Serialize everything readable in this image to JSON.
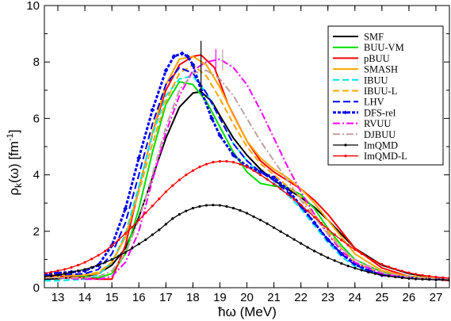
{
  "chart_data": {
    "type": "line",
    "xlabel": "ħω (MeV)",
    "ylabel_main": "ρ",
    "ylabel_sub": "k",
    "ylabel_rest": "(ω) [fm",
    "ylabel_sup": "-1",
    "ylabel_end": "]",
    "xlim": [
      12.5,
      27.5
    ],
    "ylim": [
      0,
      10
    ],
    "xticks": [
      13,
      14,
      15,
      16,
      17,
      18,
      19,
      20,
      21,
      22,
      23,
      24,
      25,
      26,
      27
    ],
    "yticks": [
      0,
      2,
      4,
      6,
      8,
      10
    ],
    "grid": false,
    "legend_position": "top-right",
    "markers": [
      {
        "x": 18.3,
        "y_low": 6.9,
        "y_high": 8.75,
        "color": "#000000"
      },
      {
        "x": 18.85,
        "y_low": 7.7,
        "y_high": 8.45,
        "color": "#ff00ff"
      },
      {
        "x": 19.1,
        "y_low": 7.7,
        "y_high": 8.45,
        "color": "#c0a0a0"
      }
    ],
    "series": [
      {
        "name": "SMF",
        "color": "#000000",
        "dash": "",
        "width": 2,
        "marker": "",
        "x": [
          12.5,
          13,
          14,
          14.5,
          15,
          15.5,
          16,
          16.5,
          17,
          17.5,
          18,
          18.3,
          18.7,
          19,
          19.5,
          20,
          20.5,
          21,
          21.5,
          22,
          22.5,
          23,
          23.5,
          24,
          25,
          26,
          27,
          27.5
        ],
        "y": [
          0.3,
          0.32,
          0.4,
          0.5,
          0.8,
          1.4,
          2.5,
          3.9,
          5.3,
          6.4,
          6.9,
          6.95,
          6.6,
          6.1,
          5.3,
          4.7,
          4.2,
          3.8,
          3.5,
          3.2,
          2.85,
          2.4,
          1.9,
          1.4,
          0.8,
          0.5,
          0.35,
          0.3
        ]
      },
      {
        "name": "BUU-VM",
        "color": "#00dd00",
        "dash": "",
        "width": 2,
        "marker": "",
        "x": [
          12.5,
          13,
          14,
          14.5,
          15,
          15.5,
          16,
          16.5,
          17,
          17.5,
          18,
          18.5,
          19,
          19.5,
          20,
          20.5,
          21,
          21.5,
          22,
          22.5,
          23,
          23.5,
          24,
          25,
          26,
          27,
          27.5
        ],
        "y": [
          0.45,
          0.45,
          0.4,
          0.35,
          0.5,
          1.2,
          2.8,
          4.8,
          6.5,
          7.3,
          7.2,
          6.6,
          5.7,
          4.8,
          4.1,
          3.7,
          3.6,
          3.55,
          3.3,
          2.8,
          2.1,
          1.5,
          1.0,
          0.55,
          0.4,
          0.35,
          0.3
        ]
      },
      {
        "name": "pBUU",
        "color": "#ff0000",
        "dash": "",
        "width": 2,
        "marker": "",
        "x": [
          12.5,
          13,
          14,
          14.5,
          15,
          15.5,
          16,
          16.5,
          17,
          17.5,
          18,
          18.3,
          18.8,
          19.3,
          20,
          20.5,
          21,
          21.5,
          22,
          22.5,
          23,
          23.5,
          24,
          25,
          26,
          27,
          27.5
        ],
        "y": [
          0.4,
          0.4,
          0.35,
          0.3,
          0.3,
          1.5,
          3.5,
          5.5,
          7.0,
          7.9,
          8.2,
          8.25,
          7.8,
          6.5,
          5.2,
          4.5,
          4.1,
          3.8,
          3.5,
          3.1,
          2.6,
          2.0,
          1.4,
          0.7,
          0.4,
          0.3,
          0.25
        ]
      },
      {
        "name": "SMASH",
        "color": "#ffa500",
        "dash": "",
        "width": 2,
        "marker": "",
        "x": [
          12.5,
          13,
          14,
          14.5,
          15,
          15.5,
          16,
          16.5,
          17,
          17.5,
          18,
          18.5,
          19,
          19.5,
          20,
          20.5,
          21,
          21.5,
          22,
          22.5,
          23,
          23.5,
          24,
          25,
          26,
          27,
          27.5
        ],
        "y": [
          0.45,
          0.45,
          0.45,
          0.5,
          0.9,
          1.8,
          3.5,
          5.5,
          7.2,
          8.1,
          8.2,
          7.9,
          7.1,
          6.1,
          5.2,
          4.6,
          4.2,
          3.9,
          3.5,
          3.0,
          2.4,
          1.8,
          1.2,
          0.6,
          0.4,
          0.35,
          0.3
        ]
      },
      {
        "name": "IBUU",
        "color": "#00e5e5",
        "dash": "8,4",
        "width": 2,
        "marker": "",
        "x": [
          12.5,
          13,
          14,
          14.5,
          15,
          15.5,
          16,
          16.5,
          17,
          17.5,
          18,
          18.5,
          19,
          19.5,
          20,
          20.5,
          21,
          21.5,
          22,
          22.5,
          23,
          23.5,
          24,
          25,
          26,
          27,
          27.5
        ],
        "y": [
          0.25,
          0.25,
          0.3,
          0.45,
          0.9,
          1.9,
          3.6,
          5.4,
          6.8,
          7.4,
          7.5,
          6.9,
          6.0,
          5.1,
          4.5,
          4.0,
          3.7,
          3.3,
          2.8,
          2.2,
          1.6,
          1.1,
          0.75,
          0.45,
          0.35,
          0.3,
          0.3
        ]
      },
      {
        "name": "IBUU-L",
        "color": "#ffa500",
        "dash": "8,4",
        "width": 2,
        "marker": "",
        "x": [
          12.5,
          13,
          14,
          14.5,
          15,
          15.5,
          16,
          16.5,
          17,
          17.5,
          18,
          18.5,
          19,
          19.5,
          20,
          20.5,
          21,
          21.5,
          22,
          22.5,
          23,
          23.5,
          24,
          25,
          26,
          27,
          27.5
        ],
        "y": [
          0.4,
          0.4,
          0.45,
          0.55,
          0.9,
          1.8,
          3.4,
          5.1,
          6.6,
          7.6,
          7.9,
          7.5,
          6.7,
          5.8,
          5.0,
          4.4,
          4.0,
          3.6,
          3.2,
          2.6,
          2.0,
          1.4,
          0.9,
          0.5,
          0.38,
          0.33,
          0.3
        ]
      },
      {
        "name": "LHV",
        "color": "#0000ee",
        "dash": "9,4",
        "width": 2,
        "marker": "",
        "x": [
          12.5,
          13,
          14,
          14.5,
          15,
          15.5,
          16,
          16.5,
          17,
          17.5,
          18,
          18.5,
          19,
          19.5,
          20,
          20.5,
          21,
          21.5,
          22,
          22.5,
          23,
          23.5,
          24,
          25,
          26,
          27,
          27.5
        ],
        "y": [
          0.45,
          0.45,
          0.5,
          0.65,
          1.2,
          2.3,
          4.0,
          5.8,
          7.2,
          7.8,
          7.6,
          6.9,
          6.0,
          5.1,
          4.5,
          4.1,
          3.8,
          3.4,
          2.9,
          2.3,
          1.7,
          1.2,
          0.8,
          0.45,
          0.35,
          0.3,
          0.3
        ]
      },
      {
        "name": "DFS-rel",
        "color": "#0000ee",
        "dash": "4,2",
        "width": 3,
        "marker": "diamond",
        "x": [
          12.5,
          13,
          13.5,
          14,
          14.5,
          15,
          15.5,
          16,
          16.5,
          17,
          17.3,
          17.6,
          17.8,
          18,
          18.3,
          18.7,
          19,
          19.5,
          20,
          20.5,
          21,
          21.5,
          22,
          22.5,
          23,
          23.5,
          24,
          24.5,
          25,
          26,
          27,
          27.5
        ],
        "y": [
          0.5,
          0.52,
          0.55,
          0.6,
          0.8,
          1.5,
          2.8,
          4.6,
          6.3,
          7.7,
          8.2,
          8.3,
          8.2,
          7.9,
          7.0,
          6.0,
          5.4,
          4.7,
          4.3,
          4.1,
          3.9,
          3.5,
          2.9,
          2.3,
          1.7,
          1.2,
          0.85,
          0.6,
          0.45,
          0.35,
          0.3,
          0.3
        ]
      },
      {
        "name": "RVUU",
        "color": "#ff00ff",
        "dash": "9,3,2,3",
        "width": 2,
        "marker": "",
        "x": [
          12.5,
          13,
          14,
          14.5,
          15,
          15.5,
          16,
          16.5,
          17,
          17.5,
          18,
          18.5,
          19,
          19.5,
          20,
          20.5,
          21,
          21.5,
          22,
          22.5,
          23,
          23.5,
          24,
          25,
          26,
          27,
          27.5
        ],
        "y": [
          0.35,
          0.35,
          0.3,
          0.3,
          0.4,
          0.9,
          2.0,
          3.8,
          5.5,
          6.8,
          7.7,
          8.0,
          8.1,
          7.8,
          7.2,
          6.3,
          5.3,
          4.3,
          3.4,
          2.6,
          1.9,
          1.3,
          0.9,
          0.5,
          0.35,
          0.3,
          0.3
        ]
      },
      {
        "name": "DJBUU",
        "color": "#c0a0a0",
        "dash": "9,3,2,3",
        "width": 2,
        "marker": "",
        "x": [
          12.5,
          13,
          14,
          14.5,
          15,
          15.5,
          16,
          16.5,
          17,
          17.5,
          18,
          18.5,
          19,
          19.5,
          20,
          20.5,
          21,
          21.5,
          22,
          22.5,
          23,
          23.5,
          24,
          25,
          26,
          27,
          27.5
        ],
        "y": [
          0.35,
          0.35,
          0.35,
          0.4,
          0.6,
          1.2,
          2.4,
          4.0,
          5.7,
          7.0,
          7.6,
          7.7,
          7.4,
          6.8,
          6.0,
          5.2,
          4.5,
          3.8,
          3.1,
          2.5,
          1.9,
          1.4,
          1.0,
          0.55,
          0.38,
          0.32,
          0.3
        ]
      },
      {
        "name": "ImQMD",
        "color": "#000000",
        "dash": "",
        "width": 1.3,
        "marker": "dot",
        "x": [
          12.5,
          12.75,
          13,
          13.25,
          13.5,
          13.75,
          14,
          14.25,
          14.5,
          14.75,
          15,
          15.25,
          15.5,
          15.75,
          16,
          16.25,
          16.5,
          16.75,
          17,
          17.25,
          17.5,
          17.75,
          18,
          18.25,
          18.5,
          18.75,
          19,
          19.25,
          19.5,
          19.75,
          20,
          20.25,
          20.5,
          20.75,
          21,
          21.25,
          21.5,
          21.75,
          22,
          22.25,
          22.5,
          22.75,
          23,
          23.25,
          23.5,
          23.75,
          24,
          24.25,
          24.5,
          24.75,
          25,
          25.25,
          25.5,
          25.75,
          26,
          26.25,
          26.5,
          26.75,
          27,
          27.25,
          27.5
        ],
        "y": [
          0.4,
          0.42,
          0.45,
          0.5,
          0.55,
          0.6,
          0.65,
          0.72,
          0.8,
          0.9,
          1.0,
          1.12,
          1.25,
          1.4,
          1.55,
          1.7,
          1.88,
          2.05,
          2.25,
          2.45,
          2.6,
          2.72,
          2.82,
          2.88,
          2.92,
          2.93,
          2.92,
          2.88,
          2.82,
          2.74,
          2.64,
          2.52,
          2.4,
          2.27,
          2.13,
          1.99,
          1.85,
          1.71,
          1.57,
          1.43,
          1.3,
          1.18,
          1.06,
          0.96,
          0.86,
          0.77,
          0.69,
          0.62,
          0.55,
          0.5,
          0.45,
          0.41,
          0.38,
          0.35,
          0.33,
          0.31,
          0.3,
          0.29,
          0.28,
          0.28,
          0.27
        ]
      },
      {
        "name": "ImQMD-L",
        "color": "#ff0000",
        "dash": "",
        "width": 1.3,
        "marker": "dot",
        "x": [
          12.5,
          12.75,
          13,
          13.25,
          13.5,
          13.75,
          14,
          14.25,
          14.5,
          14.75,
          15,
          15.25,
          15.5,
          15.75,
          16,
          16.25,
          16.5,
          16.75,
          17,
          17.25,
          17.5,
          17.75,
          18,
          18.25,
          18.5,
          18.75,
          19,
          19.25,
          19.5,
          19.75,
          20,
          20.25,
          20.5,
          20.75,
          21,
          21.25,
          21.5,
          21.75,
          22,
          22.25,
          22.5,
          22.75,
          23,
          23.25,
          23.5,
          23.75,
          24,
          24.25,
          24.5,
          24.75,
          25,
          25.25,
          25.5,
          25.75,
          26,
          26.25,
          26.5,
          26.75,
          27,
          27.25,
          27.5
        ],
        "y": [
          0.5,
          0.55,
          0.6,
          0.65,
          0.72,
          0.8,
          0.9,
          1.02,
          1.15,
          1.3,
          1.5,
          1.7,
          1.92,
          2.15,
          2.4,
          2.65,
          2.9,
          3.15,
          3.4,
          3.62,
          3.82,
          4.0,
          4.15,
          4.28,
          4.38,
          4.45,
          4.48,
          4.48,
          4.45,
          4.38,
          4.28,
          4.15,
          4.0,
          3.84,
          3.67,
          3.5,
          3.32,
          3.13,
          2.93,
          2.72,
          2.5,
          2.29,
          2.08,
          1.88,
          1.69,
          1.51,
          1.35,
          1.2,
          1.06,
          0.94,
          0.83,
          0.74,
          0.66,
          0.59,
          0.53,
          0.48,
          0.44,
          0.41,
          0.38,
          0.36,
          0.34
        ]
      }
    ]
  }
}
